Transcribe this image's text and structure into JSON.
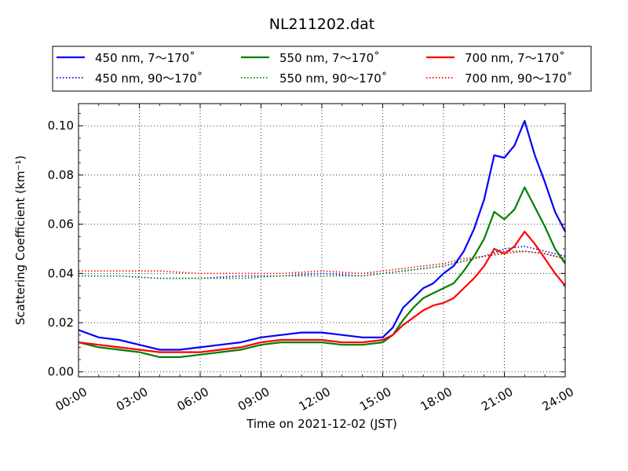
{
  "chart_data": {
    "type": "line",
    "title": "NL211202.dat",
    "xlabel": "Time on 2021-12-02 (JST)",
    "ylabel": "Scattering Coefficient (km⁻¹)",
    "xlim": [
      0,
      24
    ],
    "ylim": [
      -0.002,
      0.109
    ],
    "x_ticks": [
      0,
      3,
      6,
      9,
      12,
      15,
      18,
      21,
      24
    ],
    "x_tick_labels": [
      "00:00",
      "03:00",
      "06:00",
      "09:00",
      "12:00",
      "15:00",
      "18:00",
      "21:00",
      "24:00"
    ],
    "y_ticks": [
      0.0,
      0.02,
      0.04,
      0.06,
      0.08,
      0.1
    ],
    "y_tick_labels": [
      "0.00",
      "0.02",
      "0.04",
      "0.06",
      "0.08",
      "0.10"
    ],
    "grid": true,
    "legend_position": "top, above plot",
    "series": [
      {
        "name": "450 nm, 7～170˚",
        "color": "#0000ff",
        "style": "solid",
        "x": [
          0,
          1,
          2,
          3,
          4,
          5,
          6,
          7,
          8,
          9,
          10,
          11,
          12,
          13,
          14,
          15,
          15.5,
          16,
          16.5,
          17,
          17.5,
          18,
          18.5,
          19,
          19.5,
          20,
          20.5,
          21,
          21.5,
          22,
          22.5,
          23,
          23.5,
          24
        ],
        "y": [
          0.017,
          0.014,
          0.013,
          0.011,
          0.009,
          0.009,
          0.01,
          0.011,
          0.012,
          0.014,
          0.015,
          0.016,
          0.016,
          0.015,
          0.014,
          0.014,
          0.018,
          0.026,
          0.03,
          0.034,
          0.036,
          0.04,
          0.043,
          0.049,
          0.058,
          0.07,
          0.088,
          0.087,
          0.092,
          0.102,
          0.088,
          0.077,
          0.065,
          0.057
        ]
      },
      {
        "name": "550 nm, 7～170˚",
        "color": "#008000",
        "style": "solid",
        "x": [
          0,
          1,
          2,
          3,
          4,
          5,
          6,
          7,
          8,
          9,
          10,
          11,
          12,
          13,
          14,
          15,
          15.5,
          16,
          16.5,
          17,
          17.5,
          18,
          18.5,
          19,
          19.5,
          20,
          20.5,
          21,
          21.5,
          22,
          22.5,
          23,
          23.5,
          24
        ],
        "y": [
          0.012,
          0.01,
          0.009,
          0.008,
          0.006,
          0.006,
          0.007,
          0.008,
          0.009,
          0.011,
          0.012,
          0.012,
          0.012,
          0.011,
          0.011,
          0.012,
          0.015,
          0.021,
          0.026,
          0.03,
          0.032,
          0.034,
          0.036,
          0.041,
          0.047,
          0.054,
          0.065,
          0.062,
          0.066,
          0.075,
          0.067,
          0.059,
          0.05,
          0.044
        ]
      },
      {
        "name": "700 nm, 7～170˚",
        "color": "#ff0000",
        "style": "solid",
        "x": [
          0,
          1,
          2,
          3,
          4,
          5,
          6,
          7,
          8,
          9,
          10,
          11,
          12,
          13,
          14,
          15,
          15.5,
          16,
          16.5,
          17,
          17.5,
          18,
          18.5,
          19,
          19.5,
          20,
          20.5,
          21,
          21.5,
          22,
          22.5,
          23,
          23.5,
          24
        ],
        "y": [
          0.012,
          0.011,
          0.01,
          0.009,
          0.008,
          0.008,
          0.008,
          0.009,
          0.01,
          0.012,
          0.013,
          0.013,
          0.013,
          0.012,
          0.012,
          0.013,
          0.015,
          0.019,
          0.022,
          0.025,
          0.027,
          0.028,
          0.03,
          0.034,
          0.038,
          0.043,
          0.05,
          0.048,
          0.051,
          0.057,
          0.052,
          0.046,
          0.04,
          0.035
        ]
      },
      {
        "name": "450 nm, 90～170˚",
        "color": "#0000ff",
        "style": "dotted",
        "x": [
          0,
          2,
          4,
          6,
          8,
          10,
          12,
          14,
          15,
          16,
          17,
          18,
          19,
          20,
          21,
          22,
          23,
          24
        ],
        "y": [
          0.039,
          0.039,
          0.038,
          0.038,
          0.039,
          0.039,
          0.04,
          0.039,
          0.04,
          0.041,
          0.042,
          0.043,
          0.045,
          0.047,
          0.05,
          0.051,
          0.049,
          0.047
        ]
      },
      {
        "name": "550 nm, 90～170˚",
        "color": "#008000",
        "style": "dotted",
        "x": [
          0,
          2,
          4,
          6,
          8,
          10,
          12,
          14,
          15,
          16,
          17,
          18,
          19,
          20,
          21,
          22,
          23,
          24
        ],
        "y": [
          0.039,
          0.039,
          0.038,
          0.038,
          0.038,
          0.039,
          0.039,
          0.039,
          0.04,
          0.041,
          0.042,
          0.043,
          0.045,
          0.047,
          0.049,
          0.049,
          0.048,
          0.046
        ]
      },
      {
        "name": "700 nm, 90～170˚",
        "color": "#ff0000",
        "style": "dotted",
        "x": [
          0,
          2,
          4,
          6,
          8,
          10,
          12,
          14,
          15,
          16,
          17,
          18,
          19,
          20,
          21,
          22,
          23,
          24
        ],
        "y": [
          0.041,
          0.041,
          0.041,
          0.04,
          0.04,
          0.04,
          0.041,
          0.04,
          0.041,
          0.042,
          0.043,
          0.044,
          0.046,
          0.047,
          0.048,
          0.049,
          0.048,
          0.046
        ]
      }
    ]
  }
}
